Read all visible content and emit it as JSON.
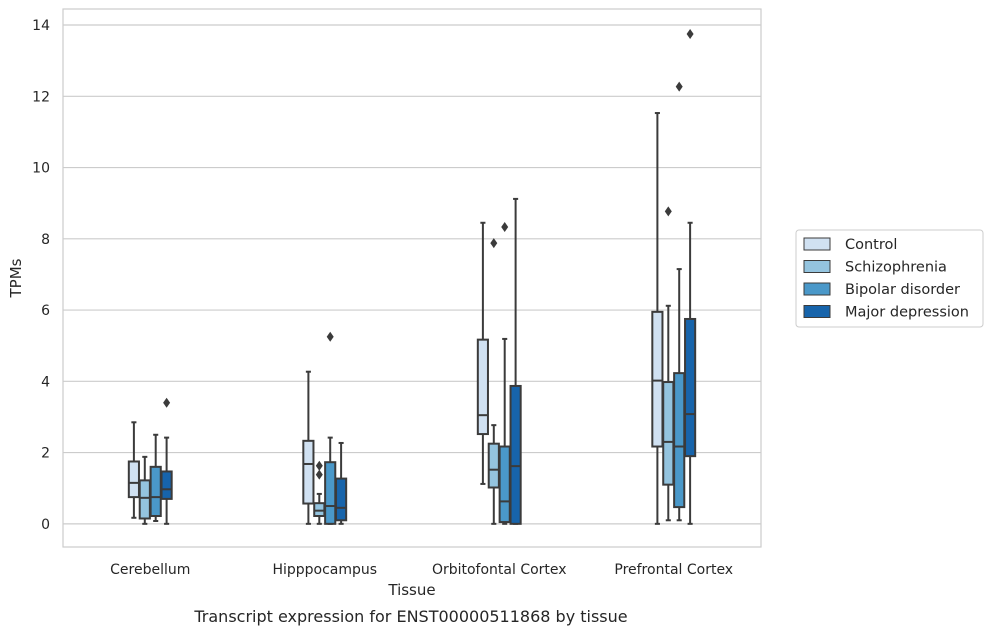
{
  "chart_data": {
    "type": "box",
    "caption": "Transcript expression for ENST00000511868 by tissue",
    "xlabel": "Tissue",
    "ylabel": "TPMs",
    "ylim": [
      -0.65,
      14.45
    ],
    "yticks": [
      0,
      2,
      4,
      6,
      8,
      10,
      12,
      14
    ],
    "grid": "horizontal",
    "legend_position": "right",
    "categories": [
      "Cerebellum",
      "Hipppocampus",
      "Orbitofontal Cortex",
      "Prefrontal Cortex"
    ],
    "series": [
      {
        "name": "Control",
        "color": "#d0e1f2",
        "boxes": [
          {
            "whislo": 0.17,
            "q1": 0.75,
            "med": 1.15,
            "q3": 1.75,
            "whishi": 2.85,
            "fliers": []
          },
          {
            "whislo": 0.0,
            "q1": 0.57,
            "med": 1.68,
            "q3": 2.33,
            "whishi": 4.27,
            "fliers": []
          },
          {
            "whislo": 1.12,
            "q1": 2.52,
            "med": 3.05,
            "q3": 5.17,
            "whishi": 8.45,
            "fliers": []
          },
          {
            "whislo": 0.0,
            "q1": 2.17,
            "med": 4.02,
            "q3": 5.95,
            "whishi": 11.53,
            "fliers": []
          }
        ]
      },
      {
        "name": "Schizophrenia",
        "color": "#94c4df",
        "boxes": [
          {
            "whislo": 0.0,
            "q1": 0.15,
            "med": 0.73,
            "q3": 1.22,
            "whishi": 1.88,
            "fliers": []
          },
          {
            "whislo": 0.0,
            "q1": 0.22,
            "med": 0.37,
            "q3": 0.58,
            "whishi": 0.84,
            "fliers": [
              1.38,
              1.63
            ]
          },
          {
            "whislo": 0.0,
            "q1": 1.02,
            "med": 1.52,
            "q3": 2.25,
            "whishi": 2.77,
            "fliers": [
              7.88
            ]
          },
          {
            "whislo": 0.1,
            "q1": 1.1,
            "med": 2.3,
            "q3": 3.98,
            "whishi": 6.12,
            "fliers": [
              8.77
            ]
          }
        ]
      },
      {
        "name": "Bipolar disorder",
        "color": "#4a98c9",
        "boxes": [
          {
            "whislo": 0.08,
            "q1": 0.22,
            "med": 0.75,
            "q3": 1.6,
            "whishi": 2.5,
            "fliers": []
          },
          {
            "whislo": 0.0,
            "q1": 0.0,
            "med": 0.5,
            "q3": 1.73,
            "whishi": 2.42,
            "fliers": [
              5.25
            ]
          },
          {
            "whislo": 0.0,
            "q1": 0.05,
            "med": 0.63,
            "q3": 2.17,
            "whishi": 5.19,
            "fliers": [
              8.33
            ]
          },
          {
            "whislo": 0.1,
            "q1": 0.47,
            "med": 2.17,
            "q3": 4.23,
            "whishi": 7.15,
            "fliers": [
              12.27
            ]
          }
        ]
      },
      {
        "name": "Major depression",
        "color": "#1764ab",
        "boxes": [
          {
            "whislo": 0.0,
            "q1": 0.7,
            "med": 0.97,
            "q3": 1.47,
            "whishi": 2.42,
            "fliers": [
              3.4
            ]
          },
          {
            "whislo": 0.0,
            "q1": 0.1,
            "med": 0.45,
            "q3": 1.27,
            "whishi": 2.27,
            "fliers": []
          },
          {
            "whislo": 0.0,
            "q1": 0.0,
            "med": 1.62,
            "q3": 3.87,
            "whishi": 9.12,
            "fliers": []
          },
          {
            "whislo": 0.0,
            "q1": 1.9,
            "med": 3.08,
            "q3": 5.75,
            "whishi": 8.45,
            "fliers": [
              13.75
            ]
          }
        ]
      }
    ]
  }
}
